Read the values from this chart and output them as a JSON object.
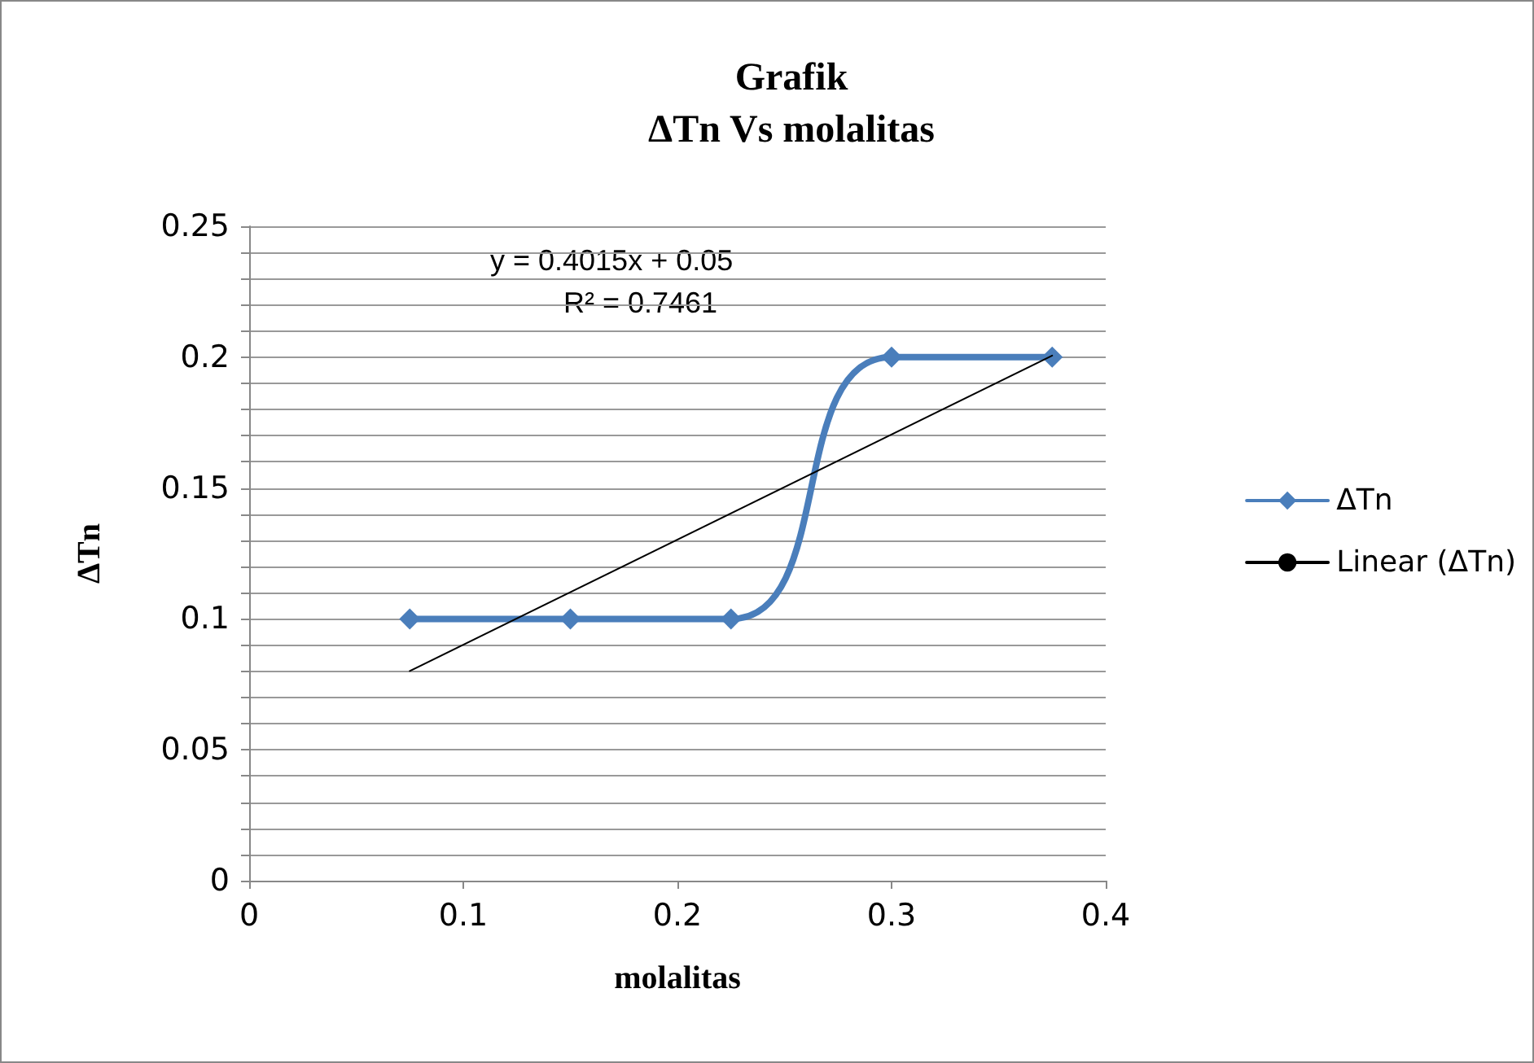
{
  "chart_data": {
    "type": "line",
    "title": "Grafik",
    "subtitle": "ΔTn Vs molalitas",
    "xlabel": "molalitas",
    "ylabel": "ΔTn",
    "x": [
      0.075,
      0.15,
      0.225,
      0.3,
      0.375
    ],
    "series": [
      {
        "name": "ΔTn",
        "color": "#4a7ebb",
        "values": [
          0.1,
          0.1,
          0.1,
          0.2,
          0.2
        ],
        "marker": "diamond"
      },
      {
        "name": "Linear (ΔTn)",
        "type": "line",
        "color": "#000000",
        "x": [
          0.075,
          0.375
        ],
        "values": [
          0.0801,
          0.2006
        ],
        "marker": "none"
      }
    ],
    "xlim": [
      0,
      0.4
    ],
    "xticks": [
      0,
      0.1,
      0.2,
      0.3,
      0.4
    ],
    "ylim": [
      0,
      0.25
    ],
    "yticks": [
      0,
      {
        "value": 0.01,
        "label": null
      },
      {
        "value": 0.02,
        "label": null
      },
      {
        "value": 0.03,
        "label": null
      },
      {
        "value": 0.04,
        "label": null
      },
      0.05,
      {
        "value": 0.06,
        "label": null
      },
      {
        "value": 0.07,
        "label": null
      },
      {
        "value": 0.08,
        "label": null
      },
      {
        "value": 0.09,
        "label": null
      },
      0.1,
      {
        "value": 0.11,
        "label": null
      },
      {
        "value": 0.12,
        "label": null
      },
      {
        "value": 0.13,
        "label": null
      },
      {
        "value": 0.14,
        "label": null
      },
      0.15,
      {
        "value": 0.16,
        "label": null
      },
      {
        "value": 0.17,
        "label": null
      },
      {
        "value": 0.18,
        "label": null
      },
      {
        "value": 0.19,
        "label": null
      },
      0.2,
      {
        "value": 0.21,
        "label": null
      },
      {
        "value": 0.22,
        "label": null
      },
      {
        "value": 0.23,
        "label": null
      },
      {
        "value": 0.24,
        "label": null
      },
      0.25
    ],
    "grid": "y",
    "legend": "right",
    "annotations": [
      "y = 0.4015x + 0.05",
      "R² = 0.7461"
    ]
  }
}
